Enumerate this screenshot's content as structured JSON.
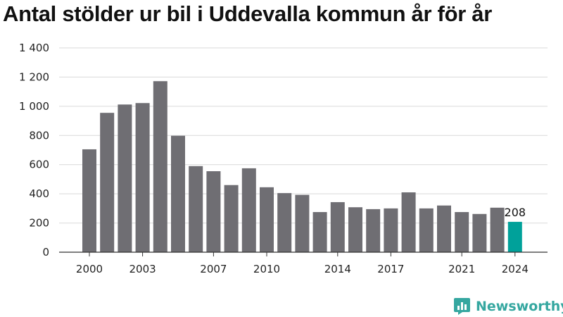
{
  "chart_data": {
    "type": "bar",
    "title": "Antal stölder ur bil i Uddevalla kommun år för år",
    "xlabel": "",
    "ylabel": "",
    "categories": [
      "2000",
      "2001",
      "2002",
      "2003",
      "2004",
      "2005",
      "2006",
      "2007",
      "2008",
      "2009",
      "2010",
      "2011",
      "2012",
      "2013",
      "2014",
      "2015",
      "2016",
      "2017",
      "2018",
      "2019",
      "2020",
      "2021",
      "2022",
      "2023",
      "2024"
    ],
    "values": [
      705,
      955,
      1012,
      1022,
      1172,
      798,
      590,
      555,
      460,
      575,
      445,
      405,
      393,
      275,
      343,
      308,
      295,
      300,
      410,
      300,
      320,
      275,
      262,
      305,
      208
    ],
    "ylim": [
      0,
      1400
    ],
    "yticks": [
      0,
      200,
      400,
      600,
      800,
      1000,
      1200,
      1400
    ],
    "ytick_labels": [
      "0",
      "200",
      "400",
      "600",
      "800",
      "1 000",
      "1 200",
      "1 400"
    ],
    "xtick_labels": [
      "2000",
      "2003",
      "2007",
      "2010",
      "2014",
      "2017",
      "2021",
      "2024"
    ],
    "grid": true,
    "colors": {
      "default": "#6f6e73",
      "highlight": "#00a19a",
      "grid": "#d9d9d9",
      "axis": "#333333"
    },
    "highlight_index": 24,
    "data_labels": [
      {
        "index": 24,
        "text": "208"
      }
    ]
  },
  "brand": {
    "name": "Newsworthy",
    "icon": "newsworthy-logo-icon",
    "color": "#35a7a0"
  }
}
